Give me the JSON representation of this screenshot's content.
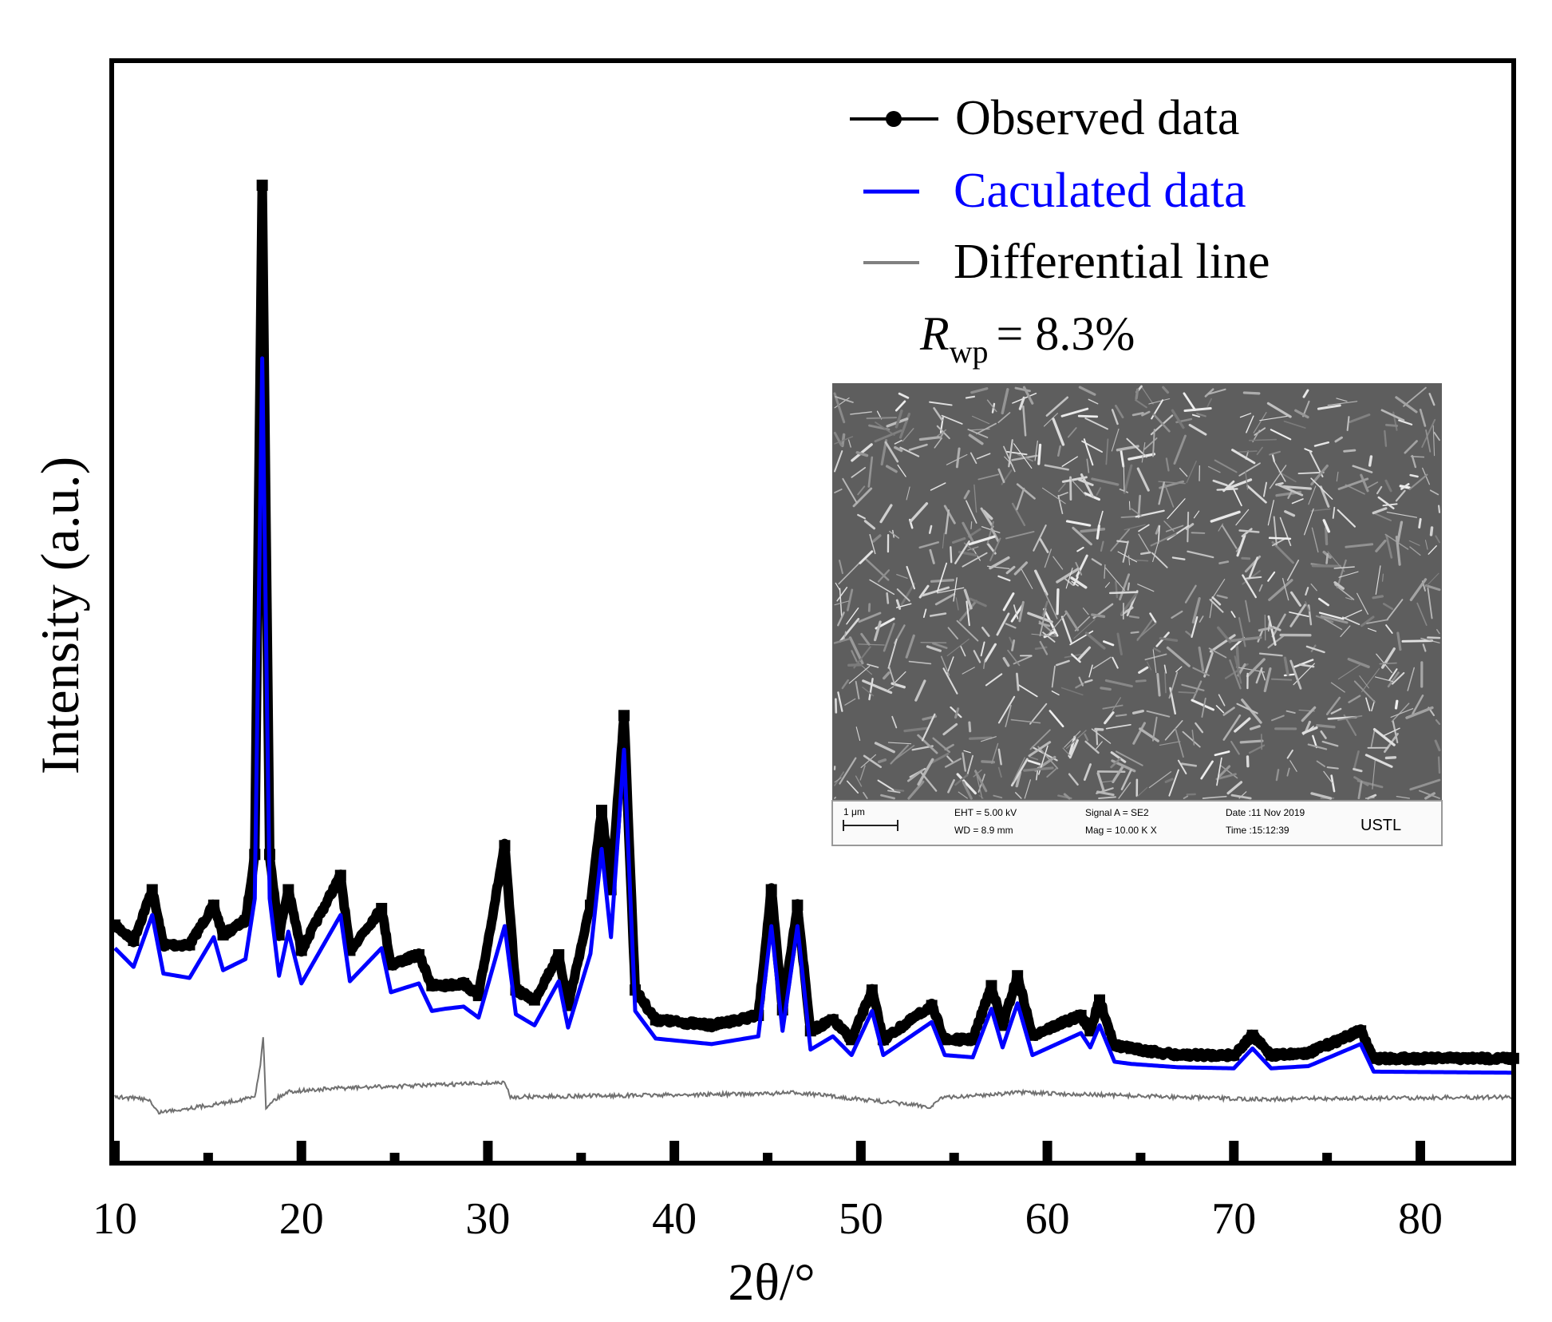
{
  "chart_data": {
    "type": "line",
    "xlabel": "2θ/°",
    "ylabel": "Intensity (a.u.)",
    "xlim": [
      10,
      85
    ],
    "ylim": [
      0,
      100
    ],
    "x_ticks": [
      10,
      20,
      30,
      40,
      50,
      60,
      70,
      80
    ],
    "x_minor_ticks": [
      15,
      25,
      35,
      45,
      55,
      65,
      75,
      85
    ],
    "y_ticks": [],
    "grid": false,
    "legend_placement": "top-right",
    "series": [
      {
        "name": "Observed data",
        "color": "#000000",
        "marker": "square",
        "x": [
          10,
          11,
          12,
          12.6,
          14,
          15.3,
          15.8,
          17,
          17.5,
          17.9,
          18.3,
          18.8,
          19.3,
          20,
          22.1,
          22.6,
          24.3,
          24.8,
          26.3,
          27,
          27.7,
          28.7,
          29.5,
          30.9,
          31.5,
          32.5,
          33.8,
          34.3,
          35.5,
          36.1,
          36.6,
          37.3,
          37.9,
          39,
          42,
          44.5,
          45.2,
          45.8,
          46.6,
          47.3,
          48.5,
          49.5,
          50.6,
          51.2,
          53.8,
          54.5,
          56,
          57,
          57.6,
          58.4,
          59.2,
          61.8,
          62.3,
          62.8,
          63.6,
          64.5,
          67,
          70,
          71,
          72,
          74,
          76.8,
          77.5,
          85
        ],
        "y": [
          21.6,
          20.2,
          24.8,
          19.8,
          19.8,
          23.4,
          20.7,
          22,
          28,
          88.7,
          28,
          20.7,
          24.8,
          19.3,
          26.1,
          19.3,
          23.1,
          18,
          18.9,
          16.1,
          16.1,
          16.3,
          15.2,
          28.8,
          15.7,
          14.8,
          18.9,
          14.3,
          23.4,
          32,
          24.8,
          40.6,
          15.7,
          13,
          12.5,
          13.4,
          24.8,
          13.9,
          23.4,
          12,
          13,
          11.2,
          15.7,
          11.2,
          14.3,
          11.2,
          11.2,
          16.1,
          12.5,
          17,
          11.6,
          13.4,
          12,
          14.8,
          10.7,
          10.4,
          9.8,
          9.8,
          11.6,
          9.8,
          10,
          12,
          9.5,
          9.5
        ]
      },
      {
        "name": "Caculated data",
        "color": "#0000ff",
        "x": [
          10,
          11,
          12,
          12.6,
          14,
          15.3,
          15.8,
          17,
          17.5,
          17.9,
          18.3,
          18.8,
          19.3,
          20,
          22.1,
          22.6,
          24.3,
          24.8,
          26.3,
          27,
          27.7,
          28.7,
          29.5,
          30.9,
          31.5,
          32.5,
          33.8,
          34.3,
          35.5,
          36.1,
          36.6,
          37.3,
          37.9,
          39,
          42,
          44.5,
          45.2,
          45.8,
          46.6,
          47.3,
          48.5,
          49.5,
          50.6,
          51.2,
          53.8,
          54.5,
          56,
          57,
          57.6,
          58.4,
          59.2,
          61.8,
          62.3,
          62.8,
          63.6,
          64.5,
          67,
          70,
          71,
          72,
          74,
          76.8,
          77.5,
          85
        ],
        "y": [
          19.5,
          17.8,
          22.5,
          17.2,
          16.8,
          20.5,
          17.5,
          18.5,
          24,
          73,
          24,
          17,
          21,
          16.3,
          22.5,
          16.5,
          19.5,
          15.5,
          16.3,
          13.8,
          14,
          14.2,
          13.2,
          21.5,
          13.5,
          12.5,
          16.5,
          12.3,
          19,
          28.5,
          20.5,
          37.5,
          13.8,
          11.3,
          10.8,
          11.5,
          21.5,
          12,
          21.5,
          10.3,
          11.5,
          9.8,
          13.8,
          9.8,
          12.8,
          9.8,
          9.6,
          14,
          10.5,
          14.5,
          9.8,
          11.8,
          10.5,
          12.5,
          9.2,
          9,
          8.7,
          8.6,
          10.4,
          8.6,
          8.8,
          10.8,
          8.3,
          8.2
        ]
      },
      {
        "name": "Differential line",
        "color": "#707070",
        "x": [
          10,
          11.8,
          12.3,
          15.3,
          17.5,
          17.8,
          17.95,
          18.1,
          18.4,
          19.3,
          22.1,
          30.9,
          31.2,
          45,
          46.6,
          53.8,
          54.2,
          58.4,
          71,
          85
        ],
        "y": [
          6.0,
          5.8,
          4.6,
          5.3,
          6.0,
          9.0,
          11.6,
          5.0,
          5.6,
          6.5,
          6.8,
          7.3,
          6.0,
          6.3,
          6.4,
          5.1,
          5.9,
          6.4,
          5.8,
          6.0
        ]
      }
    ],
    "annotation": {
      "rwp_symbol": "R",
      "rwp_subscript": "wp",
      "rwp_value": "= 8.3%"
    }
  },
  "legend": {
    "observed": "Observed data",
    "calculated": "Caculated data",
    "differential": "Differential line"
  },
  "inset": {
    "scale_bar": "1 μm",
    "eht": "EHT =  5.00 kV",
    "wd": "WD =  8.9 mm",
    "signal": "Signal A = SE2",
    "mag": "Mag =   10.00 K X",
    "date": "Date :11 Nov 2019",
    "time": "Time :15:12:39",
    "lab": "USTL"
  }
}
